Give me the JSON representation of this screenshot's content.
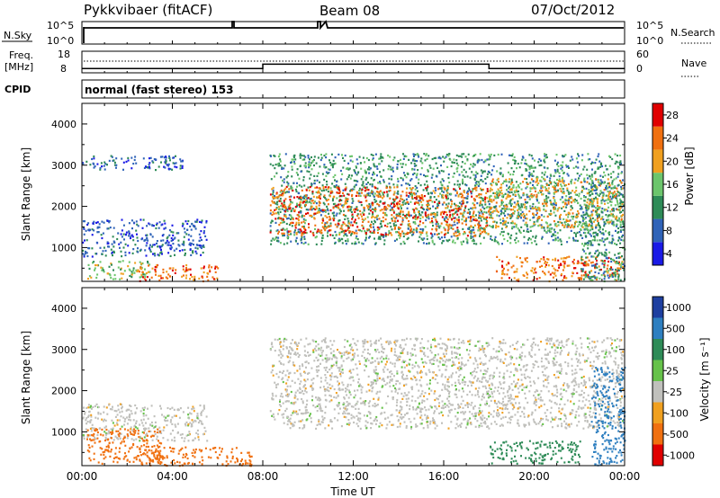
{
  "header": {
    "radar": "Pykkvibaer (fitACF)",
    "beam": "Beam 08",
    "date": "07/Oct/2012"
  },
  "nsky": {
    "label": "N.Sky",
    "left_ticks": [
      "10^5",
      "10^0"
    ],
    "right_ticks": [
      "10^5",
      "10^0"
    ],
    "right_label": "N.Search"
  },
  "freq": {
    "label_line1": "Freq.",
    "label_line2": "[MHz]",
    "left_ticks": [
      "18",
      "8"
    ],
    "right_ticks": [
      "60",
      "0"
    ],
    "right_label": "Nave"
  },
  "cpid": {
    "label": "CPID",
    "value": "normal (fast stereo) 153"
  },
  "axes": {
    "ylabel": "Slant Range [km]",
    "xlabel": "Time UT",
    "xticks": [
      "00:00",
      "04:00",
      "08:00",
      "12:00",
      "16:00",
      "20:00",
      "00:00"
    ],
    "yticks": [
      "1000",
      "2000",
      "3000",
      "4000"
    ]
  },
  "power_bar": {
    "label": "Power [dB]",
    "ticks": [
      "4",
      "8",
      "12",
      "16",
      "20",
      "24",
      "28"
    ],
    "colors": [
      "#1a1ae6",
      "#2f63b8",
      "#2e8b57",
      "#6cc56c",
      "#f0a020",
      "#f07010",
      "#e00000"
    ]
  },
  "velocity_bar": {
    "label": "Velocity [m s⁻¹]",
    "ticks": [
      "1000",
      "500",
      "100",
      "25",
      "-25",
      "-100",
      "-500",
      "-1000"
    ],
    "colors": [
      "#1e3fa0",
      "#2e7fc0",
      "#2e8b57",
      "#66c24a",
      "#c0c0bc",
      "#f0a020",
      "#f07010",
      "#e00000"
    ]
  },
  "chart_data": {
    "type": "heatmap",
    "x_range": [
      "00:00",
      "24:00"
    ],
    "ylim": [
      180,
      4500
    ],
    "panels": [
      {
        "name": "Power",
        "units": "dB",
        "regions": [
          {
            "t0": 0.0,
            "t1": 5.5,
            "r0": 800,
            "r1": 1700,
            "v": 8
          },
          {
            "t0": 0.2,
            "t1": 3.0,
            "r0": 250,
            "r1": 700,
            "v": 16
          },
          {
            "t0": 2.5,
            "t1": 6.0,
            "r0": 200,
            "r1": 600,
            "v": 24
          },
          {
            "t0": 0.0,
            "t1": 4.5,
            "r0": 2900,
            "r1": 3250,
            "v": 8
          },
          {
            "t0": 8.3,
            "t1": 23.9,
            "r0": 1100,
            "r1": 3300,
            "v": 12
          },
          {
            "t0": 8.3,
            "t1": 18.0,
            "r0": 1300,
            "r1": 2500,
            "v": 24
          },
          {
            "t0": 18.0,
            "t1": 23.9,
            "r0": 1500,
            "r1": 2700,
            "v": 20
          },
          {
            "t0": 18.3,
            "t1": 23.9,
            "r0": 200,
            "r1": 800,
            "v": 24
          },
          {
            "t0": 22.0,
            "t1": 24.0,
            "r0": 200,
            "r1": 2600,
            "v": 12
          }
        ]
      },
      {
        "name": "Velocity",
        "units": "m s-1",
        "regions": [
          {
            "t0": 0.0,
            "t1": 5.5,
            "r0": 800,
            "r1": 1700,
            "v": 0
          },
          {
            "t0": 0.2,
            "t1": 3.5,
            "r0": 250,
            "r1": 1100,
            "v": -300
          },
          {
            "t0": 2.5,
            "t1": 7.5,
            "r0": 200,
            "r1": 650,
            "v": -200
          },
          {
            "t0": 8.3,
            "t1": 23.9,
            "r0": 1100,
            "r1": 3300,
            "v": 0
          },
          {
            "t0": 18.0,
            "t1": 22.0,
            "r0": 250,
            "r1": 800,
            "v": 300
          },
          {
            "t0": 22.5,
            "t1": 24.0,
            "r0": 200,
            "r1": 2600,
            "v": 600
          }
        ]
      }
    ],
    "nsky_series": "N.Sky counts, roughly constant near 10^1 with spikes near 06:50 and 10:30",
    "freq_series": {
      "x": [
        "00:00",
        "08:00",
        "08:00",
        "18:00",
        "18:00",
        "24:00"
      ],
      "y": [
        10,
        10,
        12,
        12,
        10,
        10
      ]
    }
  }
}
